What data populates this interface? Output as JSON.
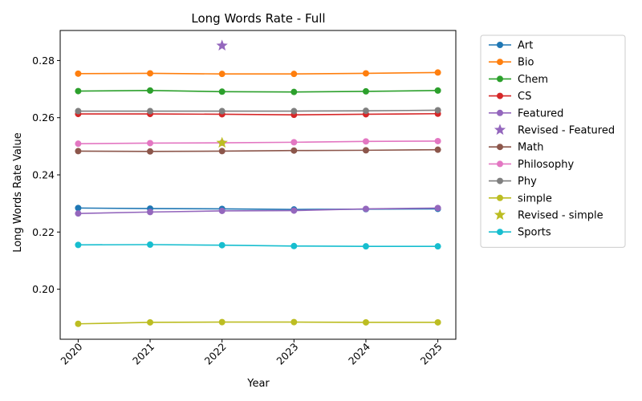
{
  "chart_data": {
    "type": "line",
    "title": "Long Words Rate - Full",
    "xlabel": "Year",
    "ylabel": "Long Words Rate Value",
    "x": [
      2020,
      2021,
      2022,
      2023,
      2024,
      2025
    ],
    "xlim": [
      2019.75,
      2025.25
    ],
    "ylim": [
      0.1825,
      0.2905
    ],
    "yticks": [
      0.2,
      0.22,
      0.24,
      0.26,
      0.28
    ],
    "ytick_labels": [
      "0.20",
      "0.22",
      "0.24",
      "0.26",
      "0.28"
    ],
    "xtick_labels": [
      "2020",
      "2021",
      "2022",
      "2023",
      "2024",
      "2025"
    ],
    "grid": false,
    "legend_position": "outside-right",
    "series": [
      {
        "name": "Art",
        "color": "#1f77b4",
        "kind": "line",
        "values": [
          0.2284,
          0.2282,
          0.2281,
          0.2279,
          0.228,
          0.2281
        ]
      },
      {
        "name": "Bio",
        "color": "#ff7f0e",
        "kind": "line",
        "values": [
          0.2754,
          0.2755,
          0.2753,
          0.2753,
          0.2755,
          0.2758
        ]
      },
      {
        "name": "Chem",
        "color": "#2ca02c",
        "kind": "line",
        "values": [
          0.2693,
          0.2695,
          0.2691,
          0.269,
          0.2692,
          0.2695
        ]
      },
      {
        "name": "CS",
        "color": "#d62728",
        "kind": "line",
        "values": [
          0.2613,
          0.2613,
          0.2612,
          0.261,
          0.2612,
          0.2614
        ]
      },
      {
        "name": "Featured",
        "color": "#9467bd",
        "kind": "line",
        "values": [
          0.2265,
          0.227,
          0.2274,
          0.2275,
          0.2281,
          0.2284
        ]
      },
      {
        "name": "Revised - Featured",
        "color": "#9467bd",
        "kind": "star",
        "points": [
          {
            "x": 2022,
            "y": 0.2852
          }
        ]
      },
      {
        "name": "Math",
        "color": "#8c564b",
        "kind": "line",
        "values": [
          0.2483,
          0.2482,
          0.2483,
          0.2485,
          0.2486,
          0.2488
        ]
      },
      {
        "name": "Philosophy",
        "color": "#e377c2",
        "kind": "line",
        "values": [
          0.2509,
          0.2511,
          0.2512,
          0.2514,
          0.2517,
          0.2518
        ]
      },
      {
        "name": "Phy",
        "color": "#7f7f7f",
        "kind": "line",
        "values": [
          0.2623,
          0.2623,
          0.2623,
          0.2623,
          0.2624,
          0.2626
        ]
      },
      {
        "name": "simple",
        "color": "#bcbd22",
        "kind": "line",
        "values": [
          0.1879,
          0.1884,
          0.1885,
          0.1885,
          0.1884,
          0.1884
        ]
      },
      {
        "name": "Revised - simple",
        "color": "#bcbd22",
        "kind": "star",
        "points": [
          {
            "x": 2022,
            "y": 0.2512
          }
        ]
      },
      {
        "name": "Sports",
        "color": "#17becf",
        "kind": "line",
        "values": [
          0.2155,
          0.2156,
          0.2154,
          0.2151,
          0.215,
          0.215
        ]
      }
    ]
  }
}
